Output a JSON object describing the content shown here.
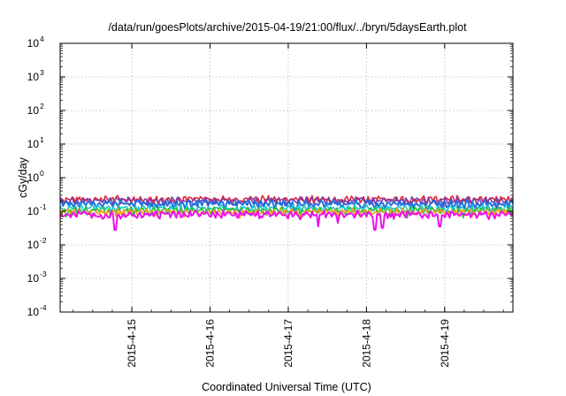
{
  "chart_data": {
    "type": "line",
    "title": "/data/run/goesPlots/archive/2015-04-19/21:00/flux/../bryn/5daysEarth.plot",
    "xlabel": "Coordinated Universal Time (UTC)",
    "ylabel": "cGy/day",
    "yscale": "log",
    "ylim": [
      0.0001,
      10000
    ],
    "y_tick_exponents": [
      "-4",
      "-3",
      "-2",
      "-1",
      "0",
      "1",
      "2",
      "3",
      "4"
    ],
    "x_range": [
      "2015-04-14 02:00",
      "2015-04-19 21:00"
    ],
    "x_tick_labels": [
      "2015-4-15",
      "2015-4-16",
      "2015-4-17",
      "2015-4-18",
      "2015-4-19"
    ],
    "grid": true,
    "series": [
      {
        "color": "#e8202c",
        "base": 0.23,
        "dips": []
      },
      {
        "color": "#7b3fb0",
        "base": 0.21,
        "dips": []
      },
      {
        "color": "#1f6fe0",
        "base": 0.17,
        "dips": [
          [
            3.0,
            0.11
          ],
          [
            3.85,
            0.13
          ],
          [
            4.7,
            0.12
          ]
        ]
      },
      {
        "color": "#18c8c8",
        "base": 0.125,
        "dips": []
      },
      {
        "color": "#2fbf3a",
        "base": 0.105,
        "dips": []
      },
      {
        "color": "#f0a020",
        "base": 0.095,
        "dips": []
      },
      {
        "color": "#ee10ee",
        "base": 0.082,
        "dips": [
          [
            0.7,
            0.028
          ],
          [
            3.3,
            0.035
          ],
          [
            3.55,
            0.045
          ],
          [
            4.02,
            0.028
          ],
          [
            4.12,
            0.032
          ],
          [
            4.85,
            0.035
          ]
        ]
      }
    ]
  }
}
